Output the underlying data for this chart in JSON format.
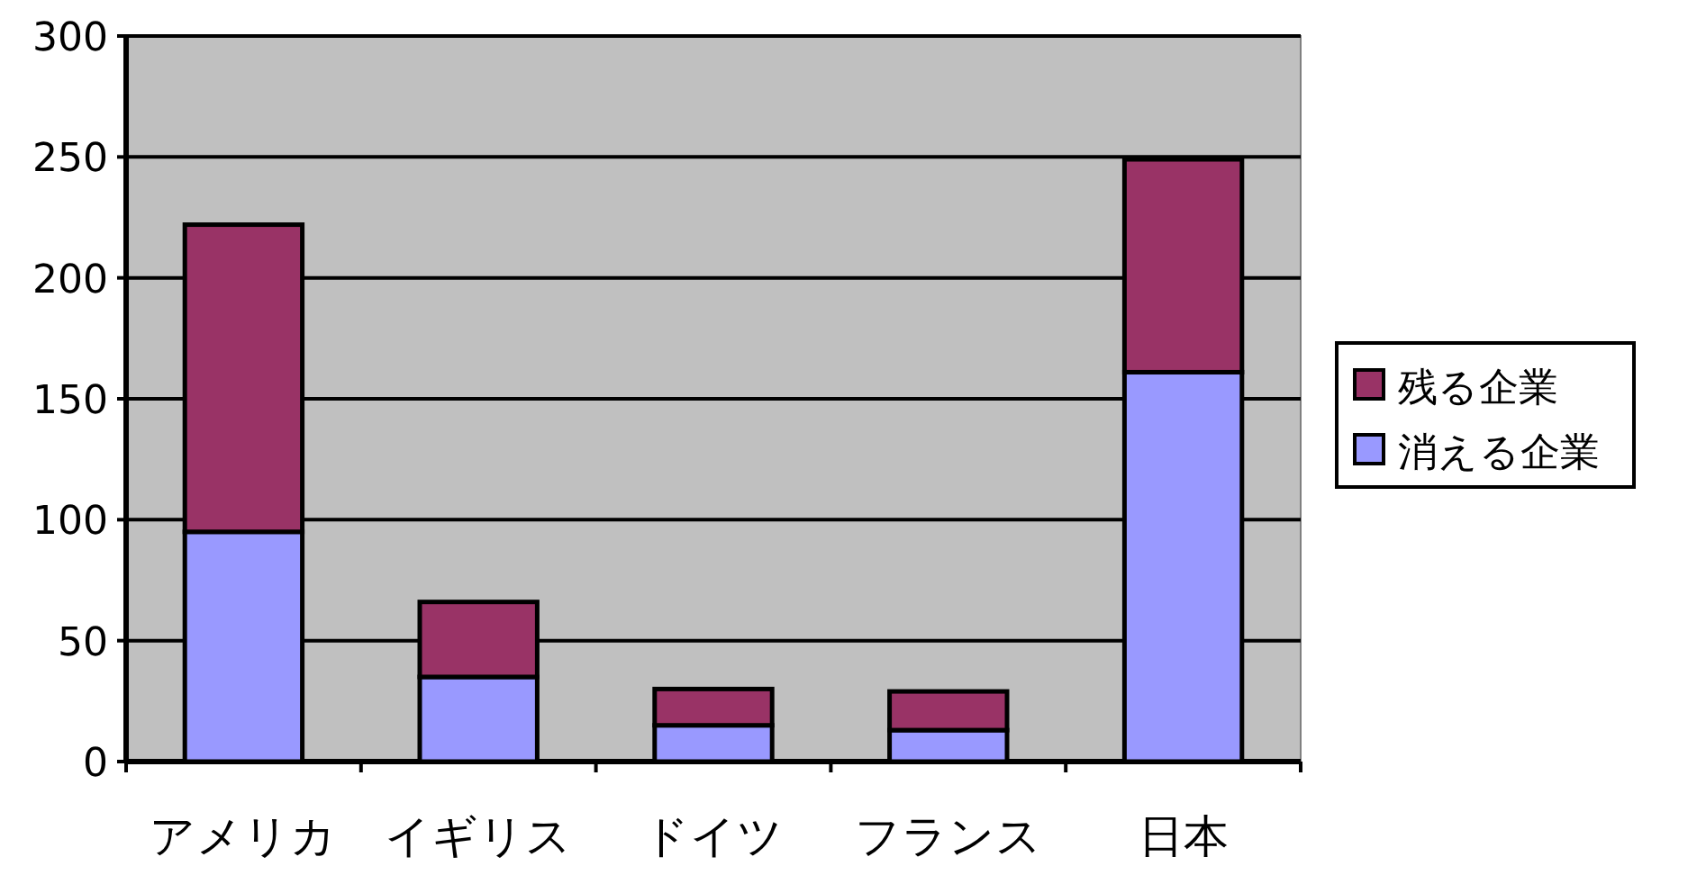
{
  "chart_data": {
    "type": "bar",
    "stacked": true,
    "categories": [
      "アメリカ",
      "イギリス",
      "ドイツ",
      "フランス",
      "日本"
    ],
    "series": [
      {
        "name": "消える企業",
        "color": "#9999ff",
        "values": [
          95,
          35,
          15,
          13,
          161
        ]
      },
      {
        "name": "残る企業",
        "color": "#993366",
        "values": [
          127,
          31,
          15,
          16,
          88
        ]
      }
    ],
    "ylim": [
      0,
      300
    ],
    "yticks": [
      0,
      50,
      100,
      150,
      200,
      250,
      300
    ],
    "grid": "y",
    "legend": "right"
  }
}
